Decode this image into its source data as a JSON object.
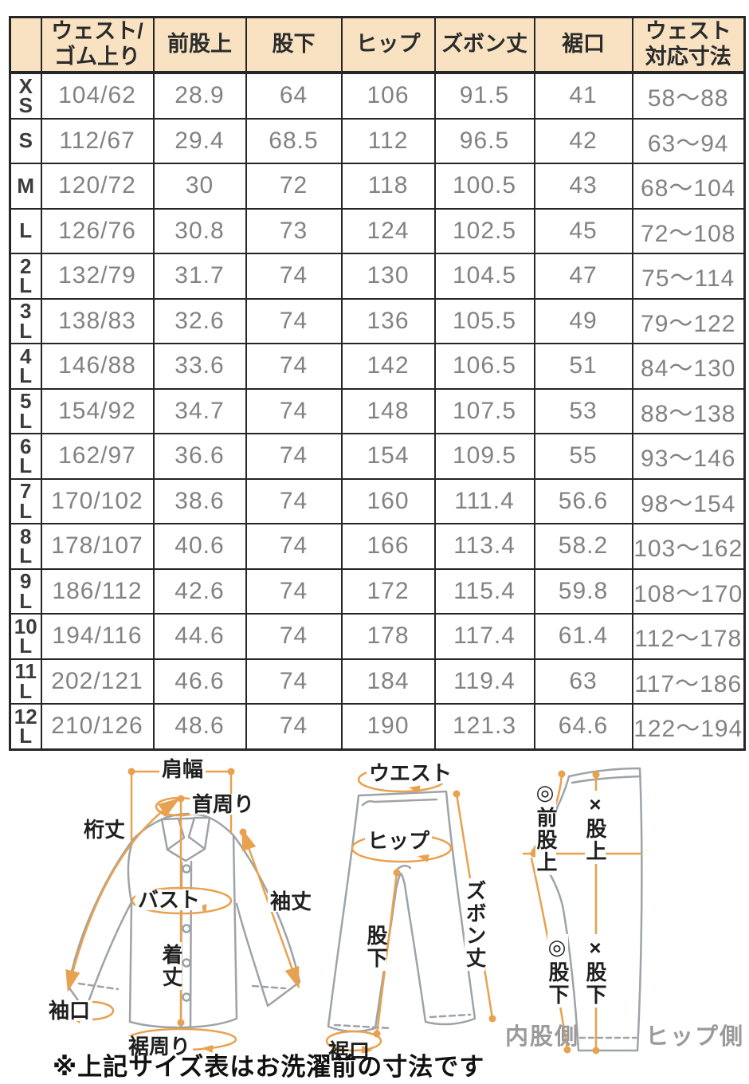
{
  "colors": {
    "header_bg": "#f8e2c2",
    "table_border": "#262626",
    "data_text": "#828282",
    "accent_orange": "#e8a14e",
    "outline_gray": "#9ea3a8",
    "side_label_gray": "#9a9a9a"
  },
  "table": {
    "columns": [
      "",
      "ウェスト/\nゴム上り",
      "前股上",
      "股下",
      "ヒップ",
      "ズボン丈",
      "裾口",
      "ウェスト\n対応寸法"
    ],
    "rows": [
      {
        "size": "X\nS",
        "cells": [
          "104/62",
          "28.9",
          "64",
          "106",
          "91.5",
          "41",
          "58〜88"
        ]
      },
      {
        "size": "S",
        "cells": [
          "112/67",
          "29.4",
          "68.5",
          "112",
          "96.5",
          "42",
          "63〜94"
        ]
      },
      {
        "size": "M",
        "cells": [
          "120/72",
          "30",
          "72",
          "118",
          "100.5",
          "43",
          "68〜104"
        ]
      },
      {
        "size": "L",
        "cells": [
          "126/76",
          "30.8",
          "73",
          "124",
          "102.5",
          "45",
          "72〜108"
        ]
      },
      {
        "size": "2\nL",
        "cells": [
          "132/79",
          "31.7",
          "74",
          "130",
          "104.5",
          "47",
          "75〜114"
        ]
      },
      {
        "size": "3\nL",
        "cells": [
          "138/83",
          "32.6",
          "74",
          "136",
          "105.5",
          "49",
          "79〜122"
        ]
      },
      {
        "size": "4\nL",
        "cells": [
          "146/88",
          "33.6",
          "74",
          "142",
          "106.5",
          "51",
          "84〜130"
        ]
      },
      {
        "size": "5\nL",
        "cells": [
          "154/92",
          "34.7",
          "74",
          "148",
          "107.5",
          "53",
          "88〜138"
        ]
      },
      {
        "size": "6\nL",
        "cells": [
          "162/97",
          "36.6",
          "74",
          "154",
          "109.5",
          "55",
          "93〜146"
        ]
      },
      {
        "size": "7\nL",
        "cells": [
          "170/102",
          "38.6",
          "74",
          "160",
          "111.4",
          "56.6",
          "98〜154"
        ]
      },
      {
        "size": "8\nL",
        "cells": [
          "178/107",
          "40.6",
          "74",
          "166",
          "113.4",
          "58.2",
          "103〜162"
        ]
      },
      {
        "size": "9\nL",
        "cells": [
          "186/112",
          "42.6",
          "74",
          "172",
          "115.4",
          "59.8",
          "108〜170"
        ]
      },
      {
        "size": "10\nL",
        "cells": [
          "194/116",
          "44.6",
          "74",
          "178",
          "117.4",
          "61.4",
          "112〜178"
        ]
      },
      {
        "size": "11\nL",
        "cells": [
          "202/121",
          "46.6",
          "74",
          "184",
          "119.4",
          "63",
          "117〜186"
        ]
      },
      {
        "size": "12\nL",
        "cells": [
          "210/126",
          "48.6",
          "74",
          "190",
          "121.3",
          "64.6",
          "122〜194"
        ]
      }
    ]
  },
  "diagram": {
    "shirt": {
      "labels": {
        "shoulder_width": "肩幅",
        "neck": "首周り",
        "sleeve_from_center": "桁丈",
        "bust": "バスト",
        "sleeve_length": "袖丈",
        "body_length": "着丈",
        "cuff": "袖口",
        "hem_circumference": "裾周り"
      }
    },
    "pants_front": {
      "labels": {
        "waist": "ウエスト",
        "hip": "ヒップ",
        "pants_length": "ズボン丈",
        "inseam": "股下",
        "hem": "裾口"
      }
    },
    "pants_side": {
      "labels": {
        "front_rise": "◎前股上",
        "rise": "×股上",
        "inseam_circle": "◎股下",
        "inseam_cross": "×股下",
        "inner_side": "内股側",
        "hip_side": "ヒップ側"
      }
    }
  },
  "note": "※上記サイズ表はお洗濯前の寸法です"
}
